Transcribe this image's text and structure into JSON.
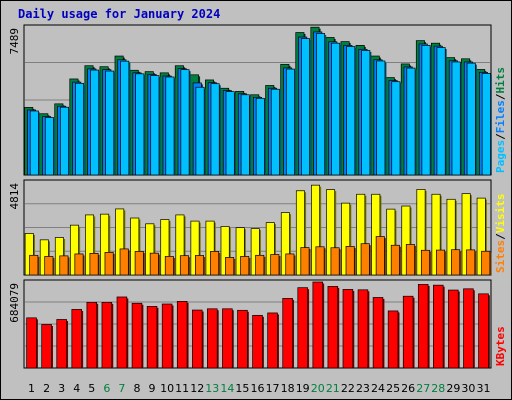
{
  "title": "Daily usage for January 2024",
  "colors": {
    "background": "#c0c0c0",
    "title": "#0000c0",
    "hits": "#008040",
    "files": "#0080ff",
    "pages": "#00c0ff",
    "visits": "#ffff00",
    "sites": "#ff8000",
    "kbytes": "#ff0000",
    "weekend_label": "#008040",
    "weekday_label": "#000000"
  },
  "chart_data": [
    {
      "type": "bar",
      "panel": "hits-files-pages",
      "categories": [
        "1",
        "2",
        "3",
        "4",
        "5",
        "6",
        "7",
        "8",
        "9",
        "10",
        "11",
        "12",
        "13",
        "14",
        "15",
        "16",
        "17",
        "18",
        "19",
        "20",
        "21",
        "22",
        "23",
        "24",
        "25",
        "26",
        "27",
        "28",
        "29",
        "30",
        "31"
      ],
      "ymax_label": "7489",
      "ylim": [
        0,
        7489
      ],
      "legend": [
        "Pages",
        "/",
        "Files",
        "/",
        "Hits"
      ],
      "grid": true,
      "series": [
        {
          "name": "Hits",
          "values": [
            3420,
            3100,
            3600,
            4860,
            5530,
            5480,
            6020,
            5300,
            5230,
            5170,
            5530,
            5070,
            4810,
            4390,
            4230,
            4060,
            4530,
            5600,
            7210,
            7480,
            6960,
            6750,
            6560,
            6020,
            4930,
            5620,
            6800,
            6670,
            5940,
            5880,
            5340
          ]
        },
        {
          "name": "Files",
          "values": [
            3290,
            2960,
            3480,
            4700,
            5370,
            5330,
            5830,
            5170,
            5090,
            5010,
            5380,
            4660,
            4670,
            4270,
            4110,
            3930,
            4390,
            5420,
            6980,
            7240,
            6740,
            6560,
            6360,
            5830,
            4780,
            5470,
            6630,
            6520,
            5780,
            5720,
            5190
          ]
        },
        {
          "name": "Pages",
          "values": [
            3240,
            2910,
            3430,
            4640,
            5310,
            5260,
            5760,
            5120,
            5030,
            4960,
            5330,
            4440,
            4620,
            4220,
            4060,
            3880,
            4340,
            5360,
            6900,
            7160,
            6670,
            6500,
            6300,
            5770,
            4720,
            5410,
            6560,
            6450,
            5720,
            5660,
            5140
          ]
        }
      ]
    },
    {
      "type": "bar",
      "panel": "visits-sites",
      "categories": [
        "1",
        "2",
        "3",
        "4",
        "5",
        "6",
        "7",
        "8",
        "9",
        "10",
        "11",
        "12",
        "13",
        "14",
        "15",
        "16",
        "17",
        "18",
        "19",
        "20",
        "21",
        "22",
        "23",
        "24",
        "25",
        "26",
        "27",
        "28",
        "29",
        "30",
        "31"
      ],
      "ymax_label": "4814",
      "ylim": [
        0,
        4814
      ],
      "legend": [
        "Sites",
        "/",
        "Visits"
      ],
      "grid": true,
      "series": [
        {
          "name": "Visits",
          "values": [
            2150,
            1820,
            1940,
            2580,
            3110,
            3150,
            3420,
            2950,
            2650,
            2870,
            3110,
            2790,
            2790,
            2510,
            2450,
            2400,
            2710,
            3230,
            4360,
            4650,
            4420,
            3720,
            4180,
            4180,
            3410,
            3570,
            4430,
            4180,
            3920,
            4210,
            3980
          ]
        },
        {
          "name": "Sites",
          "values": [
            1020,
            960,
            990,
            1090,
            1120,
            1170,
            1350,
            1220,
            1130,
            960,
            1000,
            1010,
            1220,
            910,
            960,
            1020,
            1060,
            1090,
            1420,
            1460,
            1410,
            1480,
            1620,
            1990,
            1540,
            1580,
            1280,
            1290,
            1310,
            1300,
            1230
          ]
        }
      ]
    },
    {
      "type": "bar",
      "panel": "kbytes",
      "categories": [
        "1",
        "2",
        "3",
        "4",
        "5",
        "6",
        "7",
        "8",
        "9",
        "10",
        "11",
        "12",
        "13",
        "14",
        "15",
        "16",
        "17",
        "18",
        "19",
        "20",
        "21",
        "22",
        "23",
        "24",
        "25",
        "26",
        "27",
        "28",
        "29",
        "30",
        "31"
      ],
      "ymax_label": "684079",
      "ylim": [
        0,
        684079
      ],
      "legend": [
        "KBytes"
      ],
      "grid": true,
      "series": [
        {
          "name": "KBytes",
          "values": [
            399000,
            346000,
            386000,
            466000,
            522000,
            522000,
            565000,
            515000,
            490000,
            509000,
            530000,
            461000,
            471000,
            471000,
            459000,
            419000,
            438000,
            554000,
            639000,
            684000,
            649000,
            625000,
            622000,
            561000,
            454000,
            571000,
            665000,
            659000,
            620000,
            630000,
            590000
          ]
        }
      ]
    }
  ],
  "weekend_days": [
    "6",
    "7",
    "13",
    "14",
    "20",
    "21",
    "27",
    "28"
  ]
}
